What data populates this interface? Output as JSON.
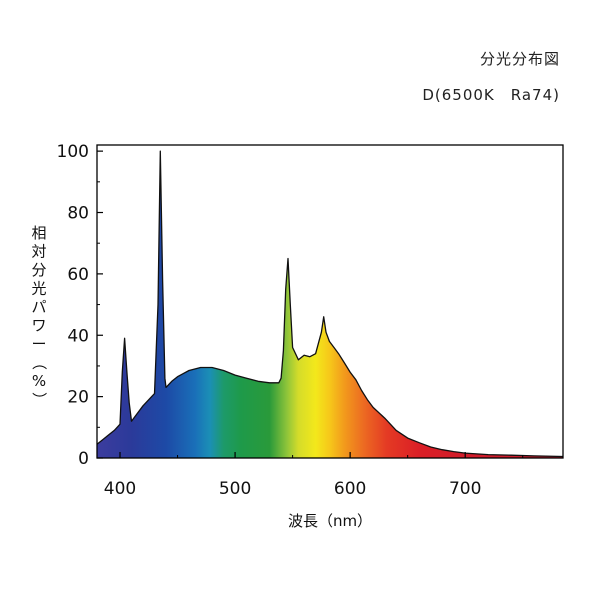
{
  "header": {
    "title": "分光分布図",
    "subtitle": "D(6500K　Ra74)"
  },
  "chart_data": {
    "type": "area",
    "title": "分光分布図",
    "subtitle": "D(6500K　Ra74)",
    "xlabel": "波長（nm）",
    "ylabel_chars": [
      "相",
      "対",
      "分",
      "光",
      "パ",
      "ワ",
      "ー",
      "（",
      "%",
      "）"
    ],
    "ylabel": "相対分光パワー（%）",
    "xlim": [
      380,
      785
    ],
    "ylim": [
      0,
      102
    ],
    "xticks": [
      400,
      500,
      600,
      700
    ],
    "yticks": [
      0,
      20,
      40,
      60,
      80,
      100
    ],
    "grid": false,
    "fill": "visible-spectrum gradient",
    "series": [
      {
        "x": [
          380,
          385,
          390,
          395,
          400,
          402,
          404,
          406,
          408,
          410,
          412,
          420,
          430,
          433,
          435,
          437,
          439,
          440,
          445,
          450,
          455,
          460,
          470,
          480,
          490,
          500,
          510,
          520,
          530,
          538,
          540,
          542,
          544,
          546,
          548,
          550,
          555,
          560,
          565,
          570,
          575,
          577,
          579,
          582,
          586,
          590,
          595,
          600,
          605,
          610,
          615,
          620,
          630,
          640,
          650,
          660,
          670,
          680,
          690,
          700,
          720,
          740,
          760,
          785
        ],
        "y": [
          4.5,
          6,
          7.5,
          9,
          11,
          28,
          39,
          28,
          18,
          12,
          13,
          17,
          21,
          50,
          100,
          58,
          26,
          23,
          25,
          26.5,
          27.5,
          28.5,
          29.5,
          29.5,
          28.5,
          27,
          26,
          25,
          24.5,
          24.5,
          26,
          35,
          55,
          65,
          50,
          36,
          32,
          33.5,
          33,
          34,
          41,
          46,
          41,
          38,
          36,
          34,
          31,
          28,
          25.5,
          22,
          19,
          16.5,
          13,
          9,
          6.5,
          5,
          3.6,
          2.7,
          2.1,
          1.6,
          1.1,
          0.9,
          0.7,
          0.5
        ]
      }
    ]
  }
}
